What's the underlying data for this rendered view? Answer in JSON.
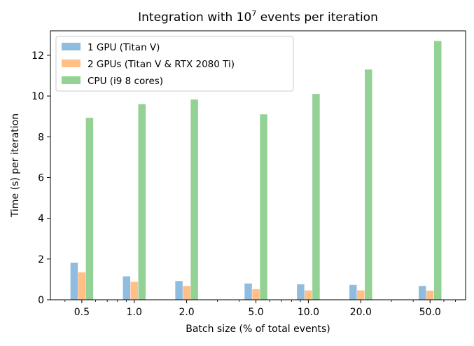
{
  "chart_data": {
    "type": "bar",
    "title_main": "Integration with 10",
    "title_exp": "7",
    "title_rest": " events per iteration",
    "xlabel": "Batch size (% of total events)",
    "ylabel": "Time (s) per iteration",
    "x_scale": "log",
    "ylim": [
      0,
      13.2
    ],
    "yticks": [
      0,
      2,
      4,
      6,
      8,
      10,
      12
    ],
    "categories": [
      "0.5",
      "1.0",
      "2.0",
      "5.0",
      "10.0",
      "20.0",
      "50.0"
    ],
    "category_values": [
      0.5,
      1.0,
      2.0,
      5.0,
      10.0,
      20.0,
      50.0
    ],
    "legend_position": "top-left",
    "series": [
      {
        "name": "1 GPU (Titan V)",
        "color": "#8fbcdf",
        "values": [
          1.82,
          1.15,
          0.92,
          0.8,
          0.76,
          0.73,
          0.68
        ]
      },
      {
        "name": "2 GPUs (Titan V & RTX 2080 Ti)",
        "color": "#ffbf86",
        "values": [
          1.35,
          0.88,
          0.68,
          0.52,
          0.46,
          0.46,
          0.45
        ]
      },
      {
        "name": "CPU (i9 8 cores)",
        "color": "#94d194",
        "values": [
          8.93,
          9.6,
          9.83,
          9.1,
          10.1,
          11.3,
          12.7
        ]
      }
    ]
  }
}
